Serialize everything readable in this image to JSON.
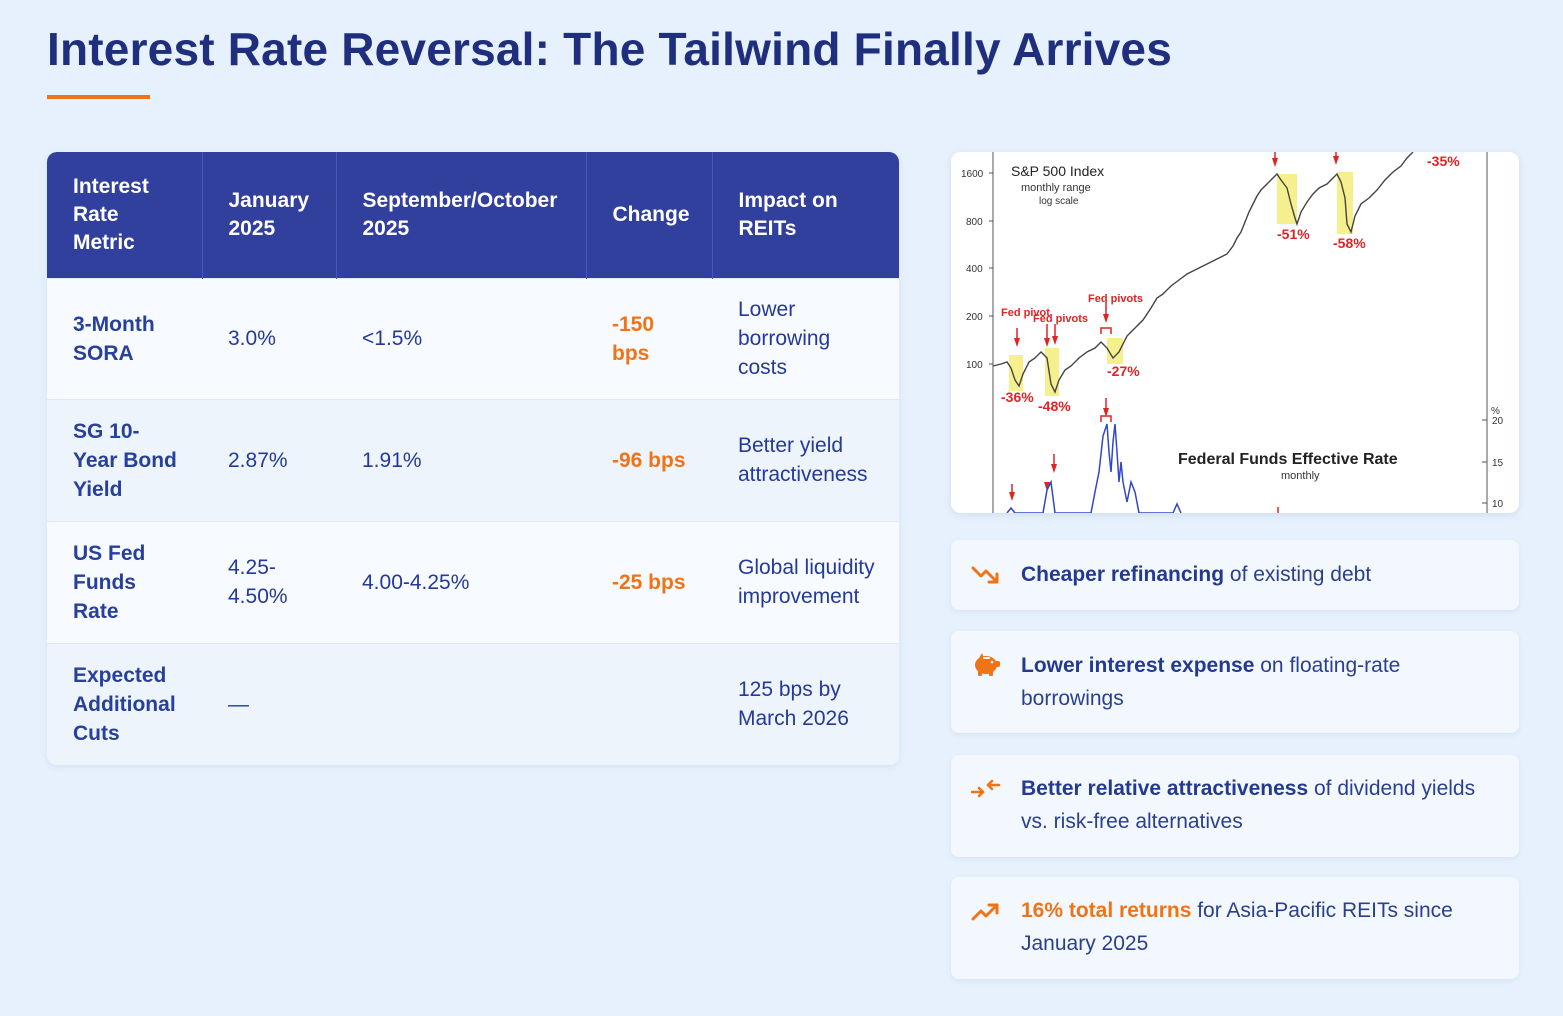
{
  "title": "Interest Rate Reversal: The Tailwind Finally Arrives",
  "table": {
    "headers": [
      "Interest Rate Metric",
      "January 2025",
      "September/October 2025",
      "Change",
      "Impact on REITs"
    ],
    "rows": [
      {
        "metric": "3-Month SORA",
        "jan": "3.0%",
        "sepoct": "<1.5%",
        "change": "-150 bps",
        "impact": "Lower borrowing costs"
      },
      {
        "metric": "SG 10-Year Bond Yield",
        "jan": "2.87%",
        "sepoct": "1.91%",
        "change": "-96 bps",
        "impact": "Better yield attractiveness"
      },
      {
        "metric": "US Fed Funds Rate",
        "jan": "4.25-4.50%",
        "sepoct": "4.00-4.25%",
        "change": "-25 bps",
        "impact": "Global liquidity improvement"
      },
      {
        "metric": "Expected Additional Cuts",
        "jan": "—",
        "sepoct": "",
        "change": "",
        "impact": "125 bps by March 2026"
      }
    ]
  },
  "chart_image": {
    "sp_title": "S&P 500 Index",
    "sp_sub1": "monthly range",
    "sp_sub2": "log scale",
    "y_ticks": [
      "1600",
      "800",
      "400",
      "200",
      "100"
    ],
    "fed_labels": [
      "Fed pivot",
      "Fed pivots",
      "Fed pivots"
    ],
    "drawdowns": [
      "-36%",
      "-48%",
      "-27%",
      "-51%",
      "-58%",
      "-35%"
    ],
    "ffr_title": "Federal Funds Effective Rate",
    "ffr_sub": "monthly",
    "right_ticks": [
      "%",
      "20",
      "15",
      "10"
    ]
  },
  "benefits": [
    {
      "icon": "trend-down-icon",
      "bold": "Cheaper refinancing",
      "rest": " of existing debt"
    },
    {
      "icon": "piggy-bank-icon",
      "bold": "Lower interest expense",
      "rest": " on floating-rate borrowings"
    },
    {
      "icon": "compress-arrows-icon",
      "bold": "Better relative attractiveness",
      "rest": " of dividend yields vs. risk-free alternatives"
    },
    {
      "icon": "trend-up-icon",
      "bold": "16% total returns",
      "rest": " for Asia-Pacific REITs since January 2025"
    }
  ],
  "colors": {
    "accent": "#f07316",
    "header": "#313f9d",
    "text": "#233a8a"
  }
}
